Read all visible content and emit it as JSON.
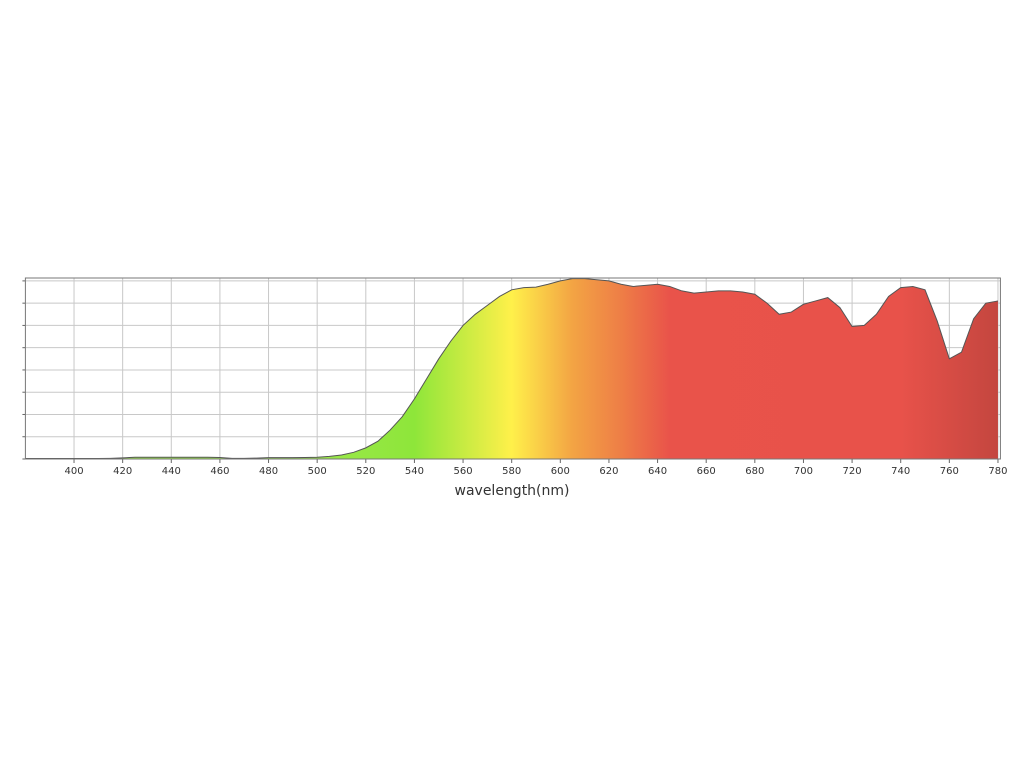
{
  "chart_data": {
    "type": "area",
    "x_label": "wavelength(nm)",
    "x": [
      380,
      385,
      390,
      395,
      400,
      405,
      410,
      415,
      420,
      425,
      430,
      435,
      440,
      445,
      450,
      455,
      460,
      465,
      470,
      475,
      480,
      485,
      490,
      495,
      500,
      505,
      510,
      515,
      520,
      525,
      530,
      535,
      540,
      545,
      550,
      555,
      560,
      565,
      570,
      575,
      580,
      585,
      590,
      595,
      600,
      605,
      610,
      615,
      620,
      625,
      630,
      635,
      640,
      645,
      650,
      655,
      660,
      665,
      670,
      675,
      680,
      685,
      690,
      695,
      700,
      705,
      710,
      715,
      720,
      725,
      730,
      735,
      740,
      745,
      750,
      755,
      760,
      765,
      770,
      775,
      780
    ],
    "values": [
      0.02,
      0.02,
      0.02,
      0.02,
      0.02,
      0.02,
      0.02,
      0.03,
      0.05,
      0.08,
      0.08,
      0.08,
      0.08,
      0.08,
      0.08,
      0.08,
      0.07,
      0.03,
      0.03,
      0.04,
      0.06,
      0.06,
      0.06,
      0.07,
      0.08,
      0.12,
      0.18,
      0.3,
      0.5,
      0.8,
      1.3,
      1.9,
      2.7,
      3.6,
      4.5,
      5.3,
      6.0,
      6.5,
      6.9,
      7.3,
      7.6,
      7.7,
      7.72,
      7.85,
      8.0,
      8.1,
      8.1,
      8.05,
      8.0,
      7.85,
      7.75,
      7.8,
      7.85,
      7.75,
      7.55,
      7.45,
      7.5,
      7.55,
      7.55,
      7.5,
      7.4,
      7.0,
      6.5,
      6.6,
      6.95,
      7.1,
      7.25,
      6.8,
      5.95,
      6.0,
      6.5,
      7.3,
      7.7,
      7.75,
      7.6,
      6.2,
      4.5,
      4.8,
      6.3,
      7.0,
      7.1
    ],
    "xlim": [
      380,
      781
    ],
    "xticks": [
      400,
      420,
      440,
      460,
      480,
      500,
      520,
      540,
      560,
      580,
      600,
      620,
      640,
      660,
      680,
      700,
      720,
      740,
      760,
      780
    ],
    "ylim": [
      0,
      8.13
    ],
    "yticks": [
      0,
      1,
      2,
      3,
      4,
      5,
      6,
      7,
      8
    ],
    "ytick_labels": false,
    "grid": true,
    "line_color": "#555555",
    "fill_stops": [
      [
        500,
        "#9be84a"
      ],
      [
        540,
        "#8ee63a"
      ],
      [
        580,
        "#fff04a"
      ],
      [
        605,
        "#f3a444"
      ],
      [
        625,
        "#ee7e46"
      ],
      [
        645,
        "#e9534a"
      ],
      [
        740,
        "#e8524a"
      ],
      [
        780,
        "#c4463f"
      ]
    ]
  }
}
